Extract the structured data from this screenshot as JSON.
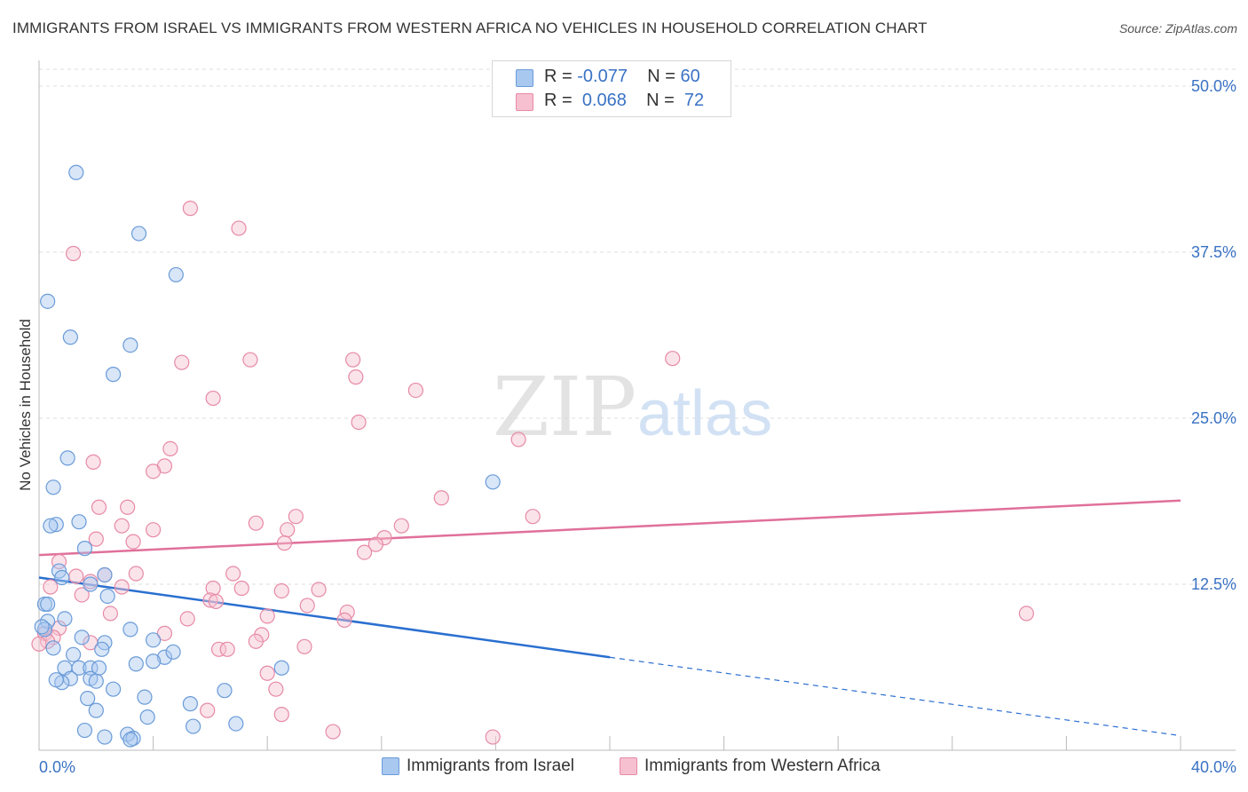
{
  "title": "IMMIGRANTS FROM ISRAEL VS IMMIGRANTS FROM WESTERN AFRICA NO VEHICLES IN HOUSEHOLD CORRELATION CHART",
  "source": "Source: ZipAtlas.com",
  "watermark": {
    "zip": "ZIP",
    "atlas": "atlas"
  },
  "legend": {
    "rows": [
      {
        "r_label": "R =",
        "r_value": "-0.077",
        "n_label": "N =",
        "n_value": "60",
        "color": "#a8c8f0",
        "border": "#6a9bd8"
      },
      {
        "r_label": "R =",
        "r_value": "0.068",
        "n_label": "N =",
        "n_value": "72",
        "color": "#f7c0d0",
        "border": "#e68aa6"
      }
    ]
  },
  "bottom_legend": [
    {
      "label": "Immigrants from Israel",
      "color": "#a8c8f0",
      "border": "#6a9bd8"
    },
    {
      "label": "Immigrants from Western Africa",
      "color": "#f7c0d0",
      "border": "#e68aa6"
    }
  ],
  "chart_data": {
    "type": "scatter",
    "title": "IMMIGRANTS FROM ISRAEL VS IMMIGRANTS FROM WESTERN AFRICA NO VEHICLES IN HOUSEHOLD CORRELATION CHART",
    "xlabel": "",
    "ylabel": "No Vehicles in Household",
    "xlim": [
      0,
      40
    ],
    "ylim": [
      0,
      50
    ],
    "x_tick_labels": [
      "0.0%",
      "40.0%"
    ],
    "y_ticks": [
      12.5,
      25.0,
      37.5,
      50.0
    ],
    "y_tick_labels": [
      "12.5%",
      "25.0%",
      "37.5%",
      "50.0%"
    ],
    "grid": true,
    "legend_position": "top-center",
    "series": [
      {
        "name": "Immigrants from Israel",
        "color": "#a8c8f0",
        "stroke": "#6a9bd8",
        "trend": {
          "x0": 0,
          "y0": 13.0,
          "x1": 20,
          "y1": 7.0,
          "dash_to": [
            40,
            1.1
          ],
          "color": "#2a6fd0"
        },
        "points": [
          [
            1.3,
            43.5
          ],
          [
            3.5,
            38.9
          ],
          [
            4.8,
            35.8
          ],
          [
            0.3,
            33.8
          ],
          [
            1.1,
            31.1
          ],
          [
            3.2,
            30.5
          ],
          [
            2.6,
            28.3
          ],
          [
            1.0,
            22.0
          ],
          [
            0.5,
            19.8
          ],
          [
            15.9,
            20.2
          ],
          [
            1.4,
            17.2
          ],
          [
            0.6,
            17.0
          ],
          [
            0.4,
            16.9
          ],
          [
            1.6,
            15.2
          ],
          [
            0.7,
            13.5
          ],
          [
            0.8,
            13.0
          ],
          [
            1.8,
            12.5
          ],
          [
            2.3,
            13.2
          ],
          [
            2.4,
            11.6
          ],
          [
            0.2,
            11.0
          ],
          [
            0.3,
            11.0
          ],
          [
            0.9,
            9.9
          ],
          [
            0.3,
            9.7
          ],
          [
            0.2,
            9.1
          ],
          [
            3.2,
            9.1
          ],
          [
            1.5,
            8.5
          ],
          [
            4.0,
            8.3
          ],
          [
            2.3,
            8.1
          ],
          [
            0.5,
            7.7
          ],
          [
            1.2,
            7.2
          ],
          [
            2.2,
            7.6
          ],
          [
            4.4,
            7.0
          ],
          [
            3.4,
            6.5
          ],
          [
            4.0,
            6.7
          ],
          [
            4.7,
            7.4
          ],
          [
            0.9,
            6.2
          ],
          [
            1.4,
            6.2
          ],
          [
            1.8,
            6.2
          ],
          [
            2.1,
            6.2
          ],
          [
            8.5,
            6.2
          ],
          [
            1.1,
            5.4
          ],
          [
            1.8,
            5.4
          ],
          [
            0.8,
            5.1
          ],
          [
            2.0,
            5.2
          ],
          [
            0.6,
            5.3
          ],
          [
            2.6,
            4.6
          ],
          [
            6.5,
            4.5
          ],
          [
            1.7,
            3.9
          ],
          [
            3.7,
            4.0
          ],
          [
            5.3,
            3.5
          ],
          [
            2.0,
            3.0
          ],
          [
            3.8,
            2.5
          ],
          [
            5.4,
            1.8
          ],
          [
            6.9,
            2.0
          ],
          [
            2.3,
            1.0
          ],
          [
            3.1,
            1.2
          ],
          [
            1.6,
            1.5
          ],
          [
            3.3,
            0.9
          ],
          [
            3.2,
            0.8
          ],
          [
            0.1,
            9.3
          ]
        ]
      },
      {
        "name": "Immigrants from Western Africa",
        "color": "#f7c0d0",
        "stroke": "#e68aa6",
        "trend": {
          "x0": 0,
          "y0": 14.7,
          "x1": 40,
          "y1": 18.8,
          "color": "#e0709a"
        },
        "points": [
          [
            5.3,
            40.8
          ],
          [
            7.0,
            39.3
          ],
          [
            1.2,
            37.4
          ],
          [
            5.0,
            29.2
          ],
          [
            7.4,
            29.4
          ],
          [
            11.0,
            29.4
          ],
          [
            11.1,
            28.1
          ],
          [
            22.2,
            29.5
          ],
          [
            6.1,
            26.5
          ],
          [
            13.2,
            27.1
          ],
          [
            11.2,
            24.7
          ],
          [
            16.8,
            23.4
          ],
          [
            4.6,
            22.7
          ],
          [
            4.4,
            21.4
          ],
          [
            4.0,
            21.0
          ],
          [
            1.9,
            21.7
          ],
          [
            14.1,
            19.0
          ],
          [
            7.6,
            17.1
          ],
          [
            9.0,
            17.6
          ],
          [
            17.3,
            17.6
          ],
          [
            2.1,
            18.3
          ],
          [
            3.1,
            18.3
          ],
          [
            2.9,
            16.9
          ],
          [
            4.0,
            16.6
          ],
          [
            8.7,
            16.6
          ],
          [
            12.7,
            16.9
          ],
          [
            12.1,
            16.0
          ],
          [
            8.6,
            15.6
          ],
          [
            11.8,
            15.5
          ],
          [
            11.4,
            14.9
          ],
          [
            2.3,
            13.2
          ],
          [
            1.8,
            12.7
          ],
          [
            3.4,
            13.3
          ],
          [
            6.8,
            13.3
          ],
          [
            1.3,
            13.1
          ],
          [
            0.4,
            12.3
          ],
          [
            2.9,
            12.3
          ],
          [
            6.1,
            12.2
          ],
          [
            7.1,
            12.2
          ],
          [
            8.5,
            12.0
          ],
          [
            9.8,
            12.1
          ],
          [
            1.5,
            11.7
          ],
          [
            6.0,
            11.3
          ],
          [
            6.2,
            11.2
          ],
          [
            9.4,
            10.9
          ],
          [
            10.8,
            10.4
          ],
          [
            2.5,
            10.3
          ],
          [
            8.0,
            10.1
          ],
          [
            10.7,
            9.8
          ],
          [
            5.2,
            9.9
          ],
          [
            34.6,
            10.3
          ],
          [
            0.7,
            9.2
          ],
          [
            0.2,
            8.8
          ],
          [
            0.5,
            8.5
          ],
          [
            0.3,
            8.2
          ],
          [
            1.8,
            8.1
          ],
          [
            4.4,
            8.8
          ],
          [
            7.8,
            8.7
          ],
          [
            7.6,
            8.2
          ],
          [
            6.3,
            7.6
          ],
          [
            6.6,
            7.6
          ],
          [
            9.3,
            7.8
          ],
          [
            8.0,
            5.8
          ],
          [
            8.3,
            4.6
          ],
          [
            5.9,
            3.0
          ],
          [
            8.5,
            2.7
          ],
          [
            10.3,
            1.4
          ],
          [
            15.9,
            1.0
          ],
          [
            0.0,
            8.0
          ],
          [
            0.7,
            14.2
          ],
          [
            2.0,
            15.9
          ],
          [
            3.3,
            15.7
          ]
        ]
      }
    ]
  }
}
